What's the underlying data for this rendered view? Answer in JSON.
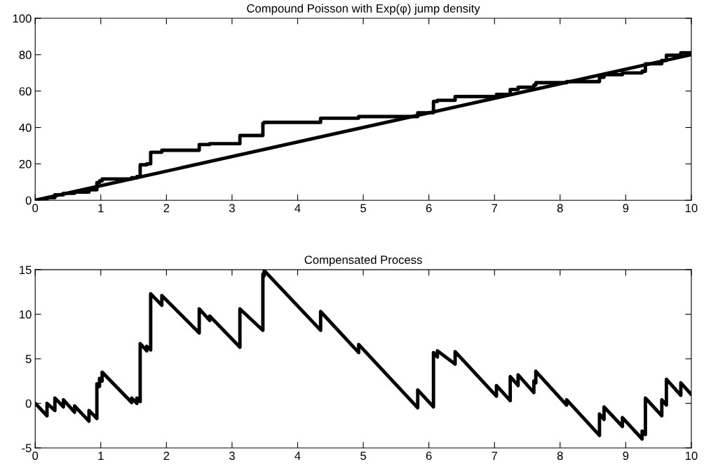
{
  "chart_data": [
    {
      "type": "step",
      "title": "Compound Poisson with Exp(φ) jump density",
      "xlim": [
        0,
        10
      ],
      "xticks": [
        0,
        1,
        2,
        3,
        4,
        5,
        6,
        7,
        8,
        9,
        10
      ],
      "ylim": [
        0,
        100
      ],
      "yticks": [
        0,
        20,
        40,
        60,
        80,
        100
      ],
      "grid": false,
      "legend": false,
      "series": [
        {
          "color": "#000000",
          "x": [
            0,
            0.18,
            0.3,
            0.43,
            0.6,
            0.82,
            0.94,
            0.98,
            1.02,
            1.47,
            1.55,
            1.6,
            1.7,
            1.76,
            1.93,
            2.5,
            2.66,
            3.12,
            3.47,
            3.49,
            4.35,
            4.93,
            5.83,
            6.07,
            6.13,
            6.4,
            7.03,
            7.24,
            7.36,
            7.6,
            7.63,
            8.1,
            8.6,
            8.67,
            8.95,
            9.25,
            9.3,
            9.55,
            9.62,
            9.84,
            10
          ],
          "values": [
            0,
            1.4,
            3.0,
            3.8,
            4.5,
            5.8,
            9.7,
            10.6,
            11.7,
            12.4,
            13.0,
            19.5,
            20.0,
            26.4,
            27.5,
            30.6,
            31.1,
            35.6,
            42.3,
            42.8,
            45.1,
            46.0,
            48.1,
            54.3,
            54.9,
            57.0,
            58.2,
            60.9,
            62.1,
            63.3,
            64.6,
            65.2,
            67.6,
            69.0,
            70.0,
            70.9,
            75.0,
            76.8,
            79.7,
            81.0,
            81.0
          ]
        },
        {
          "type": "line",
          "color": "#000000",
          "x": [
            0,
            10
          ],
          "values": [
            0,
            80
          ]
        }
      ]
    },
    {
      "type": "line",
      "title": "Compensated Process",
      "xlim": [
        0,
        10
      ],
      "xticks": [
        0,
        1,
        2,
        3,
        4,
        5,
        6,
        7,
        8,
        9,
        10
      ],
      "ylim": [
        -5,
        15
      ],
      "yticks": [
        -5,
        0,
        5,
        10,
        15
      ],
      "grid": false,
      "legend": false,
      "series": [
        {
          "color": "#000000",
          "x": [
            0,
            0.18,
            0.18,
            0.3,
            0.3,
            0.43,
            0.43,
            0.6,
            0.6,
            0.82,
            0.82,
            0.94,
            0.94,
            0.98,
            0.98,
            1.02,
            1.02,
            1.47,
            1.47,
            1.55,
            1.55,
            1.6,
            1.6,
            1.7,
            1.7,
            1.76,
            1.76,
            1.93,
            1.93,
            2.5,
            2.5,
            2.66,
            2.66,
            3.12,
            3.12,
            3.47,
            3.47,
            3.49,
            3.49,
            4.35,
            4.35,
            4.93,
            4.93,
            5.83,
            5.83,
            6.07,
            6.07,
            6.13,
            6.13,
            6.4,
            6.4,
            7.03,
            7.03,
            7.24,
            7.24,
            7.36,
            7.36,
            7.6,
            7.6,
            7.63,
            7.63,
            8.1,
            8.1,
            8.6,
            8.6,
            8.67,
            8.67,
            8.95,
            8.95,
            9.25,
            9.25,
            9.3,
            9.3,
            9.55,
            9.55,
            9.62,
            9.62,
            9.84,
            9.84,
            10
          ],
          "values": [
            0,
            -1.4,
            0,
            -0.8,
            0.6,
            -0.4,
            0.4,
            -1.0,
            -0.3,
            -2.0,
            -0.8,
            -1.7,
            2.2,
            1.9,
            2.8,
            2.5,
            3.5,
            0.1,
            0.6,
            0.0,
            0.6,
            0.2,
            6.7,
            5.9,
            6.4,
            6.0,
            12.3,
            11.0,
            12.1,
            7.9,
            10.6,
            9.3,
            9.8,
            6.3,
            10.6,
            8.2,
            14.5,
            14.3,
            14.9,
            8.2,
            10.3,
            5.7,
            6.6,
            -0.5,
            1.5,
            -0.4,
            5.7,
            5.2,
            5.9,
            4.4,
            5.8,
            0.8,
            2.0,
            0.3,
            3.0,
            2.0,
            3.2,
            1.2,
            2.5,
            2.3,
            3.6,
            -0.2,
            0.4,
            -3.6,
            -1.2,
            -1.8,
            -0.4,
            -2.6,
            -1.6,
            -4.0,
            -3.1,
            -3.5,
            0.6,
            -1.4,
            0.4,
            -0.2,
            2.7,
            0.9,
            2.3,
            1.0
          ]
        }
      ]
    }
  ]
}
